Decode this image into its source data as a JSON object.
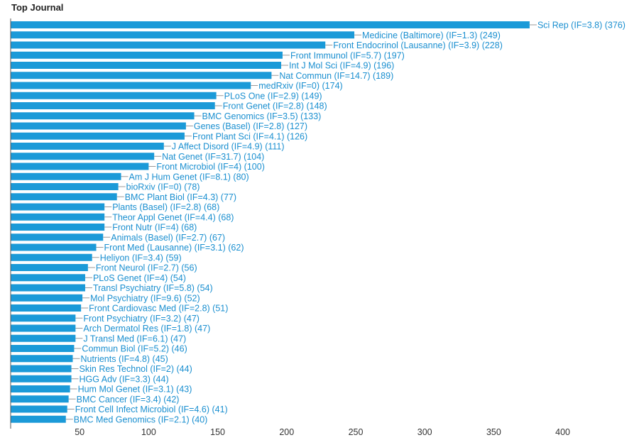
{
  "chart_data": {
    "type": "bar",
    "orientation": "horizontal",
    "title": "Top Journal",
    "bar_color": "#1b9ad8",
    "label_color": "#1a8fd0",
    "xlim": [
      0,
      415
    ],
    "xticks": [
      50,
      100,
      150,
      200,
      250,
      300,
      350,
      400
    ],
    "grid": false,
    "categories": [
      "Sci Rep (IF=3.8)",
      "Medicine (Baltimore) (IF=1.3)",
      "Front Endocrinol (Lausanne) (IF=3.9)",
      "Front Immunol (IF=5.7)",
      "Int J Mol Sci (IF=4.9)",
      "Nat Commun (IF=14.7)",
      "medRxiv (IF=0)",
      "PLoS One (IF=2.9)",
      "Front Genet (IF=2.8)",
      "BMC Genomics (IF=3.5)",
      "Genes (Basel) (IF=2.8)",
      "Front Plant Sci (IF=4.1)",
      "J Affect Disord (IF=4.9)",
      "Nat Genet (IF=31.7)",
      "Front Microbiol (IF=4)",
      "Am J Hum Genet (IF=8.1)",
      "bioRxiv (IF=0)",
      "BMC Plant Biol (IF=4.3)",
      "Plants (Basel) (IF=2.8)",
      "Theor Appl Genet (IF=4.4)",
      "Front Nutr (IF=4)",
      "Animals (Basel) (IF=2.7)",
      "Front Med (Lausanne) (IF=3.1)",
      "Heliyon (IF=3.4)",
      "Front Neurol (IF=2.7)",
      "PLoS Genet (IF=4)",
      "Transl Psychiatry (IF=5.8)",
      "Mol Psychiatry (IF=9.6)",
      "Front Cardiovasc Med (IF=2.8)",
      "Front Psychiatry (IF=3.2)",
      "Arch Dermatol Res (IF=1.8)",
      "J Transl Med (IF=6.1)",
      "Commun Biol (IF=5.2)",
      "Nutrients (IF=4.8)",
      "Skin Res Technol (IF=2)",
      "HGG Adv (IF=3.3)",
      "Hum Mol Genet (IF=3.1)",
      "BMC Cancer (IF=3.4)",
      "Front Cell Infect Microbiol (IF=4.6)",
      "BMC Med Genomics (IF=2.1)"
    ],
    "values": [
      376,
      249,
      228,
      197,
      196,
      189,
      174,
      149,
      148,
      133,
      127,
      126,
      111,
      104,
      100,
      80,
      78,
      77,
      68,
      68,
      68,
      67,
      62,
      59,
      56,
      54,
      54,
      52,
      51,
      47,
      47,
      47,
      46,
      45,
      44,
      44,
      43,
      42,
      41,
      40
    ]
  }
}
